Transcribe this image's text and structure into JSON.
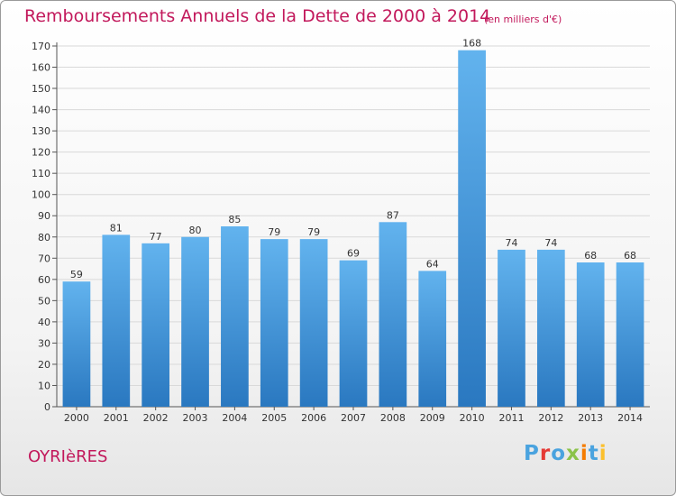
{
  "title": "Remboursements Annuels de la Dette de 2000 à 2014",
  "subtitle": "(en milliers d'€)",
  "place": "OYRIèRES",
  "logo": {
    "text": "Proxiti",
    "letter_colors": [
      "#4aa3df",
      "#e53935",
      "#4aa3df",
      "#8bc34a",
      "#f57c00",
      "#4aa3df",
      "#fbc02d"
    ]
  },
  "colors": {
    "bar_light": "#62b3ee",
    "bar_dark": "#2a78c0",
    "text_accent": "#c2185b",
    "grid": "#d9d9d9"
  },
  "chart_data": {
    "type": "bar",
    "categories": [
      "2000",
      "2001",
      "2002",
      "2003",
      "2004",
      "2005",
      "2006",
      "2007",
      "2008",
      "2009",
      "2010",
      "2011",
      "2012",
      "2013",
      "2014"
    ],
    "values": [
      59,
      81,
      77,
      80,
      85,
      79,
      79,
      69,
      87,
      64,
      168,
      74,
      74,
      68,
      68
    ],
    "yticks": [
      0,
      10,
      20,
      30,
      40,
      50,
      60,
      70,
      80,
      90,
      100,
      110,
      120,
      130,
      140,
      150,
      160,
      170
    ],
    "ylim": [
      0,
      170
    ],
    "grid": true
  }
}
